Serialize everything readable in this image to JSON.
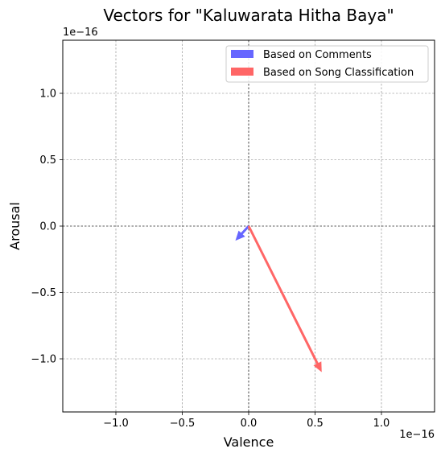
{
  "chart_data": {
    "type": "quiver",
    "title": "Vectors for \"Kaluwarata Hitha Baya\"",
    "xlabel": "Valence",
    "ylabel": "Arousal",
    "x_offset_label": "1e−16",
    "y_offset_label": "1e−16",
    "xlim": [
      -1.4e-16,
      1.4e-16
    ],
    "ylim": [
      -1.4e-16,
      1.4e-16
    ],
    "xticks": [
      -1e-16,
      -5e-17,
      0.0,
      5e-17,
      1e-16
    ],
    "yticks": [
      -1e-16,
      -5e-17,
      0.0,
      5e-17,
      1e-16
    ],
    "xtick_labels": [
      "−1.0",
      "−0.5",
      "0.0",
      "0.5",
      "1.0"
    ],
    "ytick_labels": [
      "−1.0",
      "−0.5",
      "0.0",
      "0.5",
      "1.0"
    ],
    "grid": true,
    "legend_position": "top-right",
    "series": [
      {
        "name": "Based on Comments",
        "color": "#6666ff",
        "x0": 0,
        "y0": 0,
        "dx": -1e-17,
        "dy": -1.1e-17
      },
      {
        "name": "Based on Song Classification",
        "color": "#ff6666",
        "x0": 0,
        "y0": 0,
        "dx": 5.5e-17,
        "dy": -1.1e-16
      }
    ]
  }
}
